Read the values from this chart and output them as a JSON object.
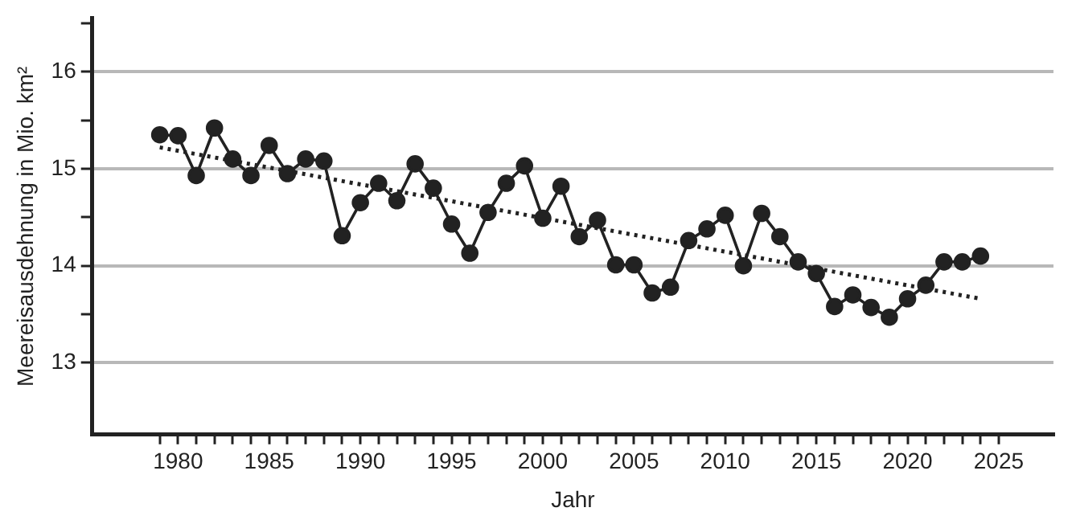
{
  "chart_data": {
    "type": "line",
    "xlabel": "Jahr",
    "ylabel": "Meereisausdehnung in Mio. km²",
    "x": [
      1979,
      1980,
      1981,
      1982,
      1983,
      1984,
      1985,
      1986,
      1987,
      1988,
      1989,
      1990,
      1991,
      1992,
      1993,
      1994,
      1995,
      1996,
      1997,
      1998,
      1999,
      2000,
      2001,
      2002,
      2003,
      2004,
      2005,
      2006,
      2007,
      2008,
      2009,
      2010,
      2011,
      2012,
      2013,
      2014,
      2015,
      2016,
      2017,
      2018,
      2019,
      2020,
      2021,
      2022,
      2023,
      2024
    ],
    "series": [
      {
        "color": "#222222",
        "marker": "circle",
        "line_style": "solid",
        "values": [
          15.35,
          15.34,
          14.93,
          15.42,
          15.1,
          14.93,
          15.24,
          14.95,
          15.1,
          15.08,
          14.31,
          14.65,
          14.85,
          14.67,
          15.05,
          14.8,
          14.43,
          14.13,
          14.55,
          14.85,
          15.03,
          14.49,
          14.82,
          14.3,
          14.47,
          14.01,
          14.01,
          13.72,
          13.78,
          14.26,
          14.38,
          14.52,
          14.0,
          14.54,
          14.3,
          14.04,
          13.92,
          13.58,
          13.7,
          13.57,
          13.47,
          13.66,
          13.8,
          14.04,
          14.04,
          14.1
        ]
      },
      {
        "type": "line",
        "color": "#222222",
        "marker": "none",
        "line_style": "dotted",
        "x": [
          1979,
          2024
        ],
        "values": [
          15.22,
          13.66
        ]
      }
    ],
    "xlim": [
      1975.3,
      2028
    ],
    "xticks": [
      {
        "value": 1979,
        "label": null
      },
      1980,
      {
        "value": 1981,
        "label": null
      },
      {
        "value": 1982,
        "label": null
      },
      {
        "value": 1983,
        "label": null
      },
      {
        "value": 1984,
        "label": null
      },
      1985,
      {
        "value": 1986,
        "label": null
      },
      {
        "value": 1987,
        "label": null
      },
      {
        "value": 1988,
        "label": null
      },
      {
        "value": 1989,
        "label": null
      },
      1990,
      {
        "value": 1991,
        "label": null
      },
      {
        "value": 1992,
        "label": null
      },
      {
        "value": 1993,
        "label": null
      },
      {
        "value": 1994,
        "label": null
      },
      1995,
      {
        "value": 1996,
        "label": null
      },
      {
        "value": 1997,
        "label": null
      },
      {
        "value": 1998,
        "label": null
      },
      {
        "value": 1999,
        "label": null
      },
      2000,
      {
        "value": 2001,
        "label": null
      },
      {
        "value": 2002,
        "label": null
      },
      {
        "value": 2003,
        "label": null
      },
      {
        "value": 2004,
        "label": null
      },
      2005,
      {
        "value": 2006,
        "label": null
      },
      {
        "value": 2007,
        "label": null
      },
      {
        "value": 2008,
        "label": null
      },
      {
        "value": 2009,
        "label": null
      },
      2010,
      {
        "value": 2011,
        "label": null
      },
      {
        "value": 2012,
        "label": null
      },
      {
        "value": 2013,
        "label": null
      },
      {
        "value": 2014,
        "label": null
      },
      2015,
      {
        "value": 2016,
        "label": null
      },
      {
        "value": 2017,
        "label": null
      },
      {
        "value": 2018,
        "label": null
      },
      {
        "value": 2019,
        "label": null
      },
      2020,
      {
        "value": 2021,
        "label": null
      },
      {
        "value": 2022,
        "label": null
      },
      {
        "value": 2023,
        "label": null
      },
      {
        "value": 2024,
        "label": null
      },
      2025
    ],
    "ylim": [
      12.26,
      16.55
    ],
    "yticks": [
      13,
      {
        "value": 13.5,
        "label": null
      },
      14,
      {
        "value": 14.5,
        "label": null
      },
      15,
      {
        "value": 15.5,
        "label": null
      },
      16,
      {
        "value": 16.5,
        "label": null
      }
    ],
    "grid": "y",
    "legend": false
  }
}
